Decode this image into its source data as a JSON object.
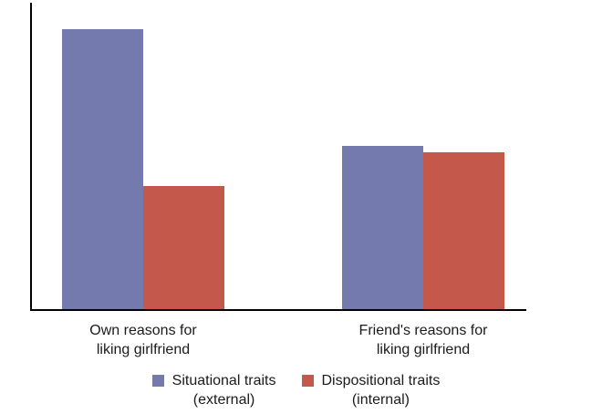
{
  "chart_data": {
    "type": "bar",
    "title": "",
    "xlabel": "",
    "ylabel": "",
    "ylim": [
      0,
      100
    ],
    "y_ticks": "none (unlabeled axis, arbitrary units)",
    "grid": false,
    "legend_position": "bottom-center",
    "categories": [
      "Own reasons for liking girlfriend",
      "Friend's reasons for liking girlfriend"
    ],
    "categories_lines": [
      [
        "Own reasons for",
        "liking girlfriend"
      ],
      [
        "Friend's reasons for",
        "liking girlfriend"
      ]
    ],
    "series": [
      {
        "name": "Situational traits (external)",
        "name_line1": "Situational traits",
        "name_line2": "(external)",
        "color": "#7479AE",
        "values": [
          91,
          53
        ]
      },
      {
        "name": "Dispositional traits (internal)",
        "name_line1": "Dispositional traits",
        "name_line2": "(internal)",
        "color": "#C4584B",
        "values": [
          40,
          51
        ]
      }
    ],
    "axis_color": "#000000"
  }
}
